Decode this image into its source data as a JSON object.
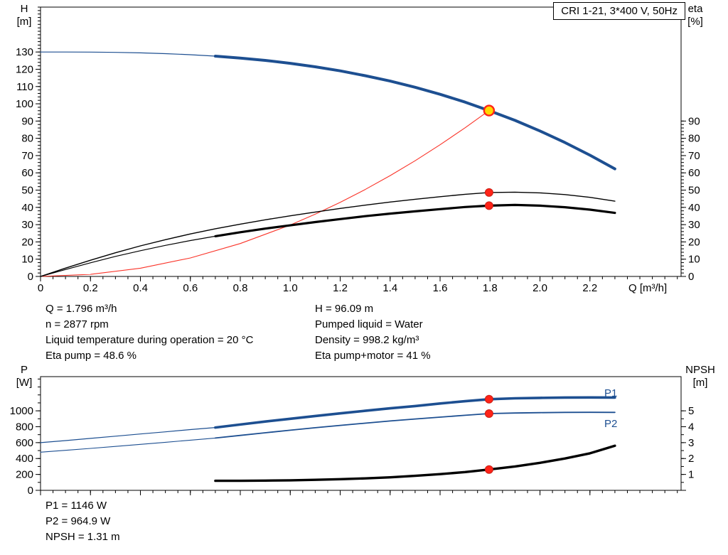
{
  "legend": {
    "label": "CRI 1-21, 3*400 V, 50Hz"
  },
  "colors": {
    "curve_blue": "#1d4f91",
    "curve_black": "#000000",
    "curve_red": "#fa3328",
    "dot_red": "#ff2318",
    "duty_yellow": "#ffd800"
  },
  "axis_titles": {
    "top_left_1": "H",
    "top_left_2": "[m]",
    "top_right_1": "eta",
    "top_right_2": "[%]",
    "x_title": "Q [m³/h]",
    "bottom_left_1": "P",
    "bottom_left_2": "[W]",
    "bottom_right_1": "NPSH",
    "bottom_right_2": "[m]"
  },
  "curve_labels": {
    "p1": "P1",
    "p2": "P2"
  },
  "info_top": {
    "left": [
      "Q = 1.796 m³/h",
      "n = 2877 rpm",
      "Liquid temperature during operation = 20 °C",
      "Eta pump = 48.6 %"
    ],
    "right": [
      "H = 96.09 m",
      "Pumped liquid = Water",
      "Density = 998.2 kg/m³",
      "Eta pump+motor = 41 %"
    ]
  },
  "info_bottom": [
    "P1 = 1146 W",
    "P2 = 964.9 W",
    "NPSH = 1.31 m"
  ],
  "chart_data": [
    {
      "type": "line",
      "title": "CRI 1-21, 3*400 V, 50Hz",
      "x_axis": {
        "label": "Q [m³/h]",
        "min": 0,
        "max": 2.565,
        "major": 0.2,
        "minor": 0.05,
        "label_max": 2.2
      },
      "y_left": {
        "label": "H [m]",
        "min": 0,
        "max": 156,
        "major": 10,
        "minor": 2,
        "label_max": 130
      },
      "y_right": {
        "label": "eta [%]",
        "min": 0,
        "max": 156,
        "major": 10,
        "minor": 2,
        "label_max": 90,
        "tick_max": 90
      },
      "grid": false,
      "series": [
        {
          "name": "head-curve-thin",
          "axis": "left",
          "color": "#1d4f91",
          "width": 1.2,
          "points": [
            [
              0,
              130
            ],
            [
              0.1,
              130
            ],
            [
              0.2,
              129.95
            ],
            [
              0.3,
              129.77
            ],
            [
              0.4,
              129.49
            ],
            [
              0.5,
              129.06
            ],
            [
              0.6,
              128.43
            ],
            [
              0.7,
              127.58
            ]
          ]
        },
        {
          "name": "head-curve",
          "axis": "left",
          "color": "#1d4f91",
          "width": 4,
          "points": [
            [
              0.7,
              127.58
            ],
            [
              0.8,
              126.48
            ],
            [
              0.9,
              125.11
            ],
            [
              1.0,
              123.43
            ],
            [
              1.1,
              121.42
            ],
            [
              1.2,
              119.06
            ],
            [
              1.3,
              116.3
            ],
            [
              1.4,
              113.14
            ],
            [
              1.5,
              109.55
            ],
            [
              1.6,
              105.48
            ],
            [
              1.7,
              100.97
            ],
            [
              1.796,
              96.09
            ],
            [
              1.9,
              90.37
            ],
            [
              2.0,
              84.27
            ],
            [
              2.1,
              77.53
            ],
            [
              2.2,
              70.21
            ],
            [
              2.3,
              62.33
            ]
          ]
        },
        {
          "name": "system-curve",
          "axis": "left",
          "color": "#fa3328",
          "width": 1.1,
          "points": [
            [
              0,
              0
            ],
            [
              0.2,
              1.19
            ],
            [
              0.4,
              4.77
            ],
            [
              0.6,
              10.72
            ],
            [
              0.8,
              19.07
            ],
            [
              1.0,
              29.79
            ],
            [
              1.1,
              36.05
            ],
            [
              1.2,
              42.9
            ],
            [
              1.3,
              50.35
            ],
            [
              1.4,
              58.39
            ],
            [
              1.5,
              67.03
            ],
            [
              1.6,
              76.26
            ],
            [
              1.7,
              86.09
            ],
            [
              1.796,
              96.09
            ]
          ]
        },
        {
          "name": "eta-pump-curve",
          "axis": "right",
          "color": "#000000",
          "width": 1.4,
          "points": [
            [
              0,
              0
            ],
            [
              0.1,
              4.8
            ],
            [
              0.2,
              9.4
            ],
            [
              0.3,
              13.7
            ],
            [
              0.4,
              17.7
            ],
            [
              0.5,
              21.3
            ],
            [
              0.6,
              24.6
            ],
            [
              0.7,
              27.6
            ],
            [
              0.8,
              30.3
            ],
            [
              0.9,
              32.8
            ],
            [
              1.0,
              35.1
            ],
            [
              1.1,
              37.3
            ],
            [
              1.2,
              39.4
            ],
            [
              1.3,
              41.3
            ],
            [
              1.4,
              43.1
            ],
            [
              1.5,
              44.7
            ],
            [
              1.6,
              46.2
            ],
            [
              1.7,
              47.6
            ],
            [
              1.796,
              48.6
            ],
            [
              1.9,
              48.8
            ],
            [
              2.0,
              48.4
            ],
            [
              2.1,
              47.4
            ],
            [
              2.2,
              45.8
            ],
            [
              2.3,
              43.6
            ]
          ]
        },
        {
          "name": "eta-pump-motor-curve-thin",
          "axis": "right",
          "color": "#000000",
          "width": 1.2,
          "points": [
            [
              0,
              0
            ],
            [
              0.1,
              4.0
            ],
            [
              0.2,
              7.9
            ],
            [
              0.3,
              11.6
            ],
            [
              0.4,
              14.9
            ],
            [
              0.5,
              18.0
            ],
            [
              0.6,
              20.8
            ],
            [
              0.7,
              23.3
            ]
          ]
        },
        {
          "name": "eta-pump-motor-curve",
          "axis": "right",
          "color": "#000000",
          "width": 3.2,
          "points": [
            [
              0.7,
              23.3
            ],
            [
              0.8,
              25.6
            ],
            [
              0.9,
              27.7
            ],
            [
              1.0,
              29.6
            ],
            [
              1.1,
              31.5
            ],
            [
              1.2,
              33.2
            ],
            [
              1.3,
              34.9
            ],
            [
              1.4,
              36.4
            ],
            [
              1.5,
              37.7
            ],
            [
              1.6,
              39.0
            ],
            [
              1.7,
              40.2
            ],
            [
              1.796,
              41.0
            ],
            [
              1.9,
              41.4
            ],
            [
              2.0,
              41.0
            ],
            [
              2.1,
              40.1
            ],
            [
              2.2,
              38.7
            ],
            [
              2.3,
              36.8
            ]
          ]
        }
      ],
      "markers": [
        {
          "name": "duty-point-marker",
          "x": 1.796,
          "y": 96.09,
          "axis": "left",
          "r": 7,
          "fill": "#ffd800",
          "stroke": "#ff2318",
          "stroke_width": 2.4
        },
        {
          "name": "eta-pump-point",
          "x": 1.796,
          "y": 48.6,
          "axis": "right",
          "r": 5.5,
          "fill": "#ff2318",
          "stroke": "#c81e14",
          "stroke_width": 1
        },
        {
          "name": "eta-pump-motor-point",
          "x": 1.796,
          "y": 41,
          "axis": "right",
          "r": 5.5,
          "fill": "#ff2318",
          "stroke": "#c81e14",
          "stroke_width": 1
        }
      ]
    },
    {
      "type": "line",
      "title": "Power and NPSH",
      "x_axis": {
        "label": "Q [m³/h]",
        "min": 0,
        "max": 2.565,
        "major": 0.2,
        "minor": 0.05,
        "label_max": 2.2
      },
      "y_left": {
        "label": "P [W]",
        "min": 0,
        "max": 1430,
        "major": 200,
        "minor": 100,
        "label_max": 1000
      },
      "y_right": {
        "label": "NPSH [m]",
        "min": 0,
        "max": 7.15,
        "major": 1,
        "minor": 0.5,
        "label_max": 5,
        "label_min": 1,
        "tick_max": 5
      },
      "grid": false,
      "series": [
        {
          "name": "p1-curve-thin",
          "axis": "left",
          "color": "#1d4f91",
          "width": 1.2,
          "points": [
            [
              0,
              600
            ],
            [
              0.1,
              626
            ],
            [
              0.2,
              653
            ],
            [
              0.3,
              681
            ],
            [
              0.4,
              709
            ],
            [
              0.5,
              736
            ],
            [
              0.6,
              764
            ],
            [
              0.7,
              790
            ]
          ]
        },
        {
          "name": "p1-curve",
          "axis": "left",
          "color": "#1d4f91",
          "width": 3.6,
          "points": [
            [
              0.7,
              790
            ],
            [
              0.8,
              828
            ],
            [
              0.9,
              865
            ],
            [
              1.0,
              900
            ],
            [
              1.1,
              935
            ],
            [
              1.2,
              968
            ],
            [
              1.3,
              1000
            ],
            [
              1.4,
              1031
            ],
            [
              1.5,
              1060
            ],
            [
              1.6,
              1092
            ],
            [
              1.7,
              1121
            ],
            [
              1.796,
              1146
            ],
            [
              1.9,
              1157
            ],
            [
              2.0,
              1163
            ],
            [
              2.1,
              1167
            ],
            [
              2.2,
              1168
            ],
            [
              2.3,
              1167
            ]
          ]
        },
        {
          "name": "p2-curve-thin",
          "axis": "left",
          "color": "#1d4f91",
          "width": 1.1,
          "points": [
            [
              0,
              480
            ],
            [
              0.1,
              503
            ],
            [
              0.2,
              527
            ],
            [
              0.3,
              552
            ],
            [
              0.4,
              578
            ],
            [
              0.5,
              604
            ],
            [
              0.6,
              631
            ],
            [
              0.7,
              658
            ]
          ]
        },
        {
          "name": "p2-curve",
          "axis": "left",
          "color": "#1d4f91",
          "width": 1.8,
          "points": [
            [
              0.7,
              658
            ],
            [
              0.8,
              691
            ],
            [
              0.9,
              724
            ],
            [
              1.0,
              756
            ],
            [
              1.1,
              787
            ],
            [
              1.2,
              817
            ],
            [
              1.3,
              845
            ],
            [
              1.4,
              872
            ],
            [
              1.5,
              897
            ],
            [
              1.6,
              921
            ],
            [
              1.7,
              944
            ],
            [
              1.796,
              964.9
            ],
            [
              1.9,
              972
            ],
            [
              2.0,
              977
            ],
            [
              2.1,
              980
            ],
            [
              2.2,
              981
            ],
            [
              2.3,
              980
            ]
          ]
        },
        {
          "name": "npsh-curve",
          "axis": "right",
          "color": "#000000",
          "width": 3.4,
          "points": [
            [
              0.7,
              0.6
            ],
            [
              0.8,
              0.6
            ],
            [
              0.9,
              0.61
            ],
            [
              1.0,
              0.63
            ],
            [
              1.1,
              0.66
            ],
            [
              1.2,
              0.7
            ],
            [
              1.3,
              0.75
            ],
            [
              1.4,
              0.82
            ],
            [
              1.5,
              0.91
            ],
            [
              1.6,
              1.02
            ],
            [
              1.7,
              1.15
            ],
            [
              1.796,
              1.31
            ],
            [
              1.9,
              1.5
            ],
            [
              2.0,
              1.73
            ],
            [
              2.1,
              2.0
            ],
            [
              2.2,
              2.33
            ],
            [
              2.3,
              2.8
            ]
          ]
        }
      ],
      "markers": [
        {
          "name": "p1-point",
          "x": 1.796,
          "y": 1146,
          "axis": "left",
          "r": 5.5,
          "fill": "#ff2318",
          "stroke": "#c81e14",
          "stroke_width": 1
        },
        {
          "name": "p2-point",
          "x": 1.796,
          "y": 964.9,
          "axis": "left",
          "r": 5.5,
          "fill": "#ff2318",
          "stroke": "#c81e14",
          "stroke_width": 1
        },
        {
          "name": "npsh-point",
          "x": 1.796,
          "y": 1.31,
          "axis": "right",
          "r": 5.5,
          "fill": "#ff2318",
          "stroke": "#c81e14",
          "stroke_width": 1
        }
      ]
    }
  ]
}
